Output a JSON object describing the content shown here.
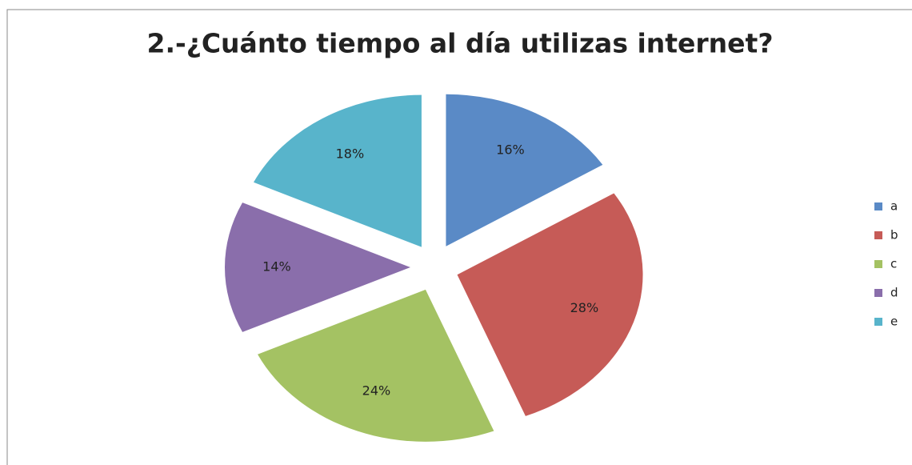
{
  "chart_data": {
    "type": "pie",
    "title": "2.-¿Cuánto tiempo al día utilizas internet?",
    "categories": [
      "a",
      "b",
      "c",
      "d",
      "e"
    ],
    "values": [
      16,
      28,
      24,
      14,
      18
    ],
    "value_labels": [
      "16%",
      "28%",
      "24%",
      "14%",
      "18%"
    ],
    "colors": [
      "#5a8ac6",
      "#c65b57",
      "#a4c263",
      "#8a6eab",
      "#58b4cb"
    ],
    "exploded": true,
    "legend": "right"
  }
}
